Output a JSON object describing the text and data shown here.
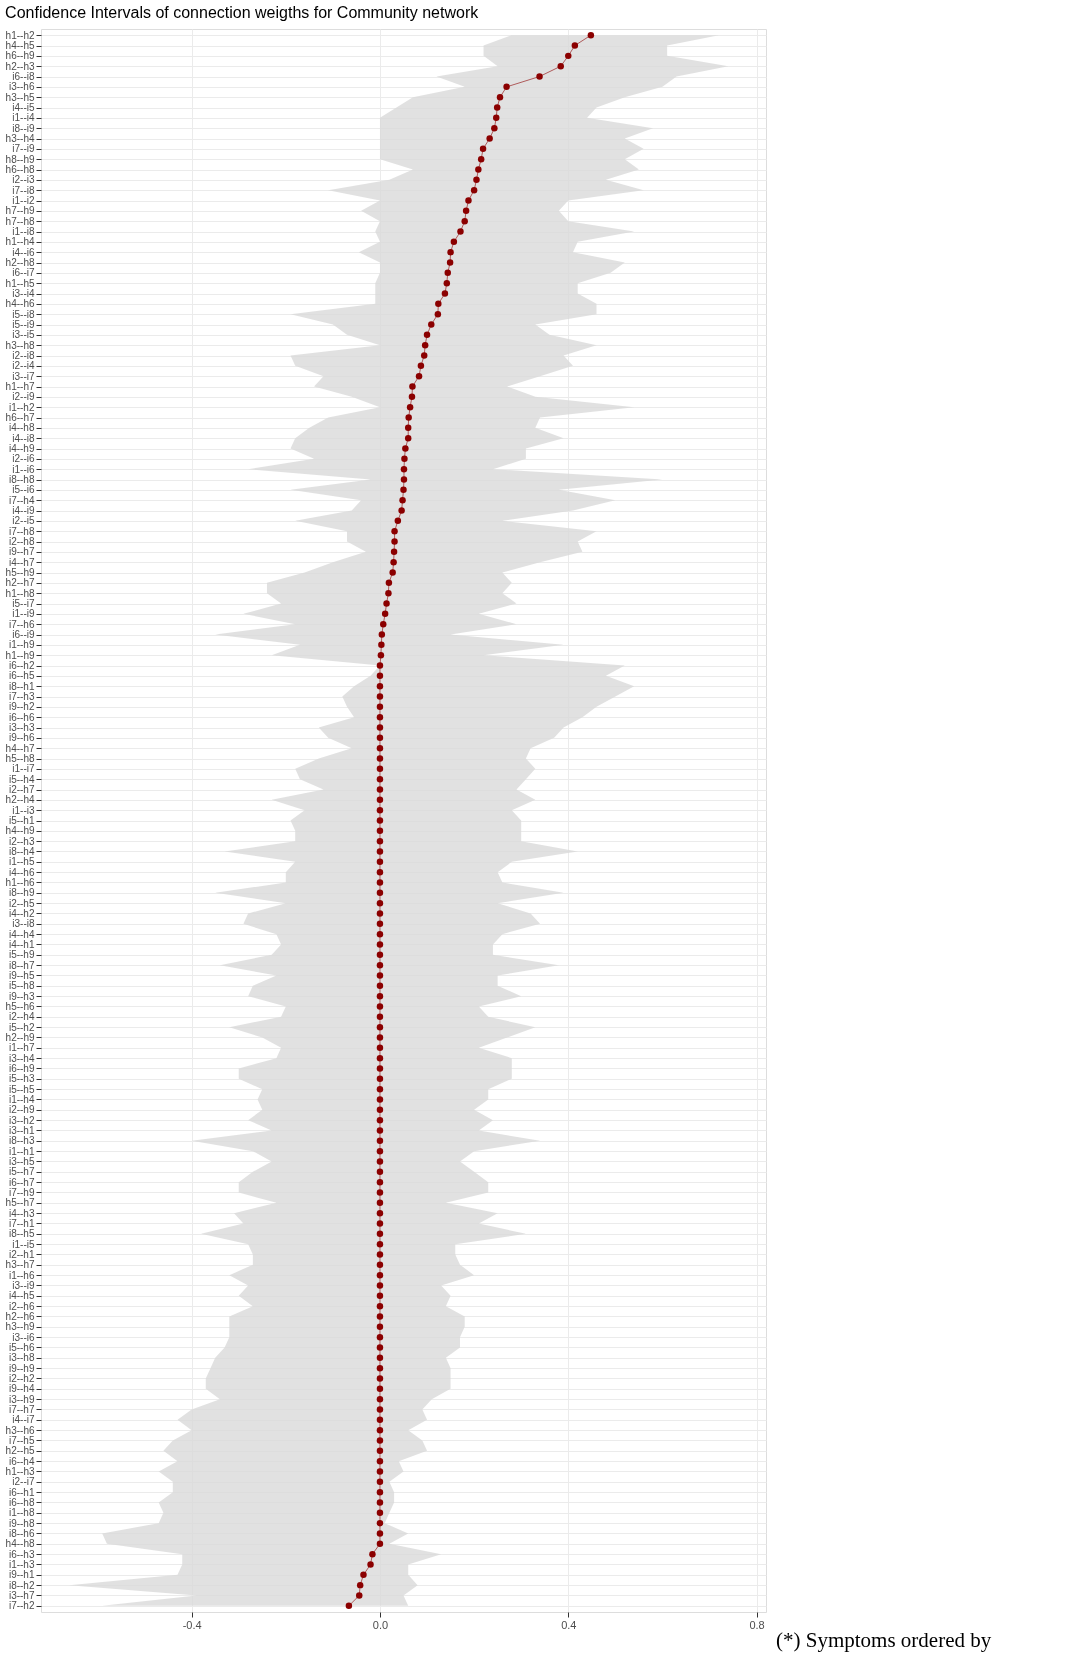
{
  "chart_data": {
    "type": "line",
    "orientation": "horizontal",
    "title": "Confidence Intervals of connection weigths for Community network",
    "annotations": [
      "(*) Symptoms ordered by"
    ],
    "categories": [
      "h1--h2",
      "h4--h5",
      "h6--h9",
      "h2--h3",
      "i6--i8",
      "i3--h6",
      "h3--h5",
      "i4--i5",
      "i1--i4",
      "i8--i9",
      "h3--h4",
      "i7--i9",
      "h8--h9",
      "h6--h8",
      "i2--i3",
      "i7--i8",
      "i1--i2",
      "h7--h9",
      "h7--h8",
      "i1--i8",
      "h1--h4",
      "i4--i6",
      "h2--h8",
      "i6--i7",
      "h1--h5",
      "i3--i4",
      "h4--h6",
      "i5--i8",
      "i5--i9",
      "i3--i5",
      "h3--h8",
      "i2--i8",
      "i2--i4",
      "i3--i7",
      "h1--h7",
      "i2--i9",
      "i1--h2",
      "h6--h7",
      "i4--h8",
      "i4--i8",
      "i4--h9",
      "i2--i6",
      "i1--i6",
      "i8--h8",
      "i5--i6",
      "i7--h4",
      "i4--i9",
      "i2--i5",
      "i7--h8",
      "i2--h8",
      "i9--h7",
      "i4--h7",
      "h5--h9",
      "h2--h7",
      "h1--h8",
      "i5--i7",
      "i1--i9",
      "i7--h6",
      "i6--i9",
      "i1--h9",
      "h1--h9",
      "i6--h2",
      "i6--h5",
      "i8--h1",
      "i7--h3",
      "i9--h2",
      "i6--h6",
      "i3--h3",
      "i9--h6",
      "h4--h7",
      "h5--h8",
      "i1--i7",
      "i5--h4",
      "i2--h7",
      "h2--h4",
      "i1--i3",
      "i5--h1",
      "h4--h9",
      "i2--h3",
      "i8--h4",
      "i1--h5",
      "i4--h6",
      "h1--h6",
      "i8--h9",
      "i2--h5",
      "i4--h2",
      "i3--i8",
      "i4--h4",
      "i4--h1",
      "i5--h9",
      "i8--h7",
      "i9--h5",
      "i5--h8",
      "i9--h3",
      "h5--h6",
      "i2--h4",
      "i5--h2",
      "h2--h9",
      "i1--h7",
      "i3--h4",
      "i6--h9",
      "i5--h3",
      "i5--h5",
      "i1--h4",
      "i2--h9",
      "i3--h2",
      "i3--h1",
      "i8--h3",
      "i1--h1",
      "i3--h5",
      "i5--h7",
      "i6--h7",
      "i7--h9",
      "h5--h7",
      "i4--h3",
      "i7--h1",
      "i8--h5",
      "i1--i5",
      "i2--h1",
      "h3--h7",
      "i1--h6",
      "i3--i9",
      "i4--h5",
      "i2--h6",
      "h2--h6",
      "h3--h9",
      "i3--i6",
      "i5--h6",
      "i3--h8",
      "i9--h9",
      "i2--h2",
      "i9--h4",
      "i3--h9",
      "i7--h7",
      "i4--i7",
      "h3--h6",
      "i7--h5",
      "h2--h5",
      "i6--h4",
      "h1--h3",
      "i2--i7",
      "i6--h1",
      "i6--h8",
      "i1--h8",
      "i9--h8",
      "i8--h6",
      "h4--h8",
      "i6--h3",
      "i1--h3",
      "i9--h1",
      "i8--h2",
      "i3--h7",
      "i7--h2"
    ],
    "series": [
      {
        "color": "#8b0000",
        "values": [
          0.448,
          0.414,
          0.4,
          0.384,
          0.339,
          0.269,
          0.255,
          0.249,
          0.247,
          0.243,
          0.233,
          0.219,
          0.215,
          0.209,
          0.205,
          0.2,
          0.188,
          0.183,
          0.18,
          0.171,
          0.157,
          0.15,
          0.149,
          0.144,
          0.142,
          0.138,
          0.124,
          0.123,
          0.109,
          0.1,
          0.096,
          0.094,
          0.087,
          0.083,
          0.069,
          0.068,
          0.064,
          0.061,
          0.06,
          0.06,
          0.054,
          0.052,
          0.051,
          0.051,
          0.05,
          0.048,
          0.046,
          0.038,
          0.031,
          0.031,
          0.03,
          0.029,
          0.027,
          0.019,
          0.018,
          0.014,
          0.011,
          0.007,
          0.004,
          0.003,
          0.002,
          0,
          0,
          0,
          0,
          0,
          0,
          0,
          0,
          0,
          0,
          0,
          0,
          0,
          0,
          0,
          0,
          0,
          0,
          0,
          0,
          0,
          0,
          0,
          0,
          0,
          0,
          0,
          0,
          0,
          0,
          0,
          0,
          0,
          0,
          0,
          0,
          0,
          0,
          0,
          0,
          0,
          0,
          0,
          0,
          0,
          0,
          0,
          0,
          0,
          0,
          0,
          0,
          0,
          0,
          0,
          0,
          0,
          0,
          0,
          0,
          0,
          0,
          0,
          0,
          0,
          0,
          0,
          0,
          0,
          0,
          0,
          0,
          0,
          0,
          0,
          0,
          0,
          0,
          0,
          0,
          0,
          0,
          0,
          0,
          0,
          0,
          -0.016,
          -0.02,
          -0.035,
          -0.042,
          -0.044,
          -0.066
        ],
        "lower": [
          0.28,
          0.22,
          0.22,
          0.25,
          0.12,
          0.18,
          0.07,
          0.035,
          0.0,
          0.0,
          0.0,
          0.0,
          0.0,
          0.07,
          0.02,
          -0.11,
          0.0,
          -0.04,
          0.0,
          -0.01,
          0.0,
          -0.045,
          0.0,
          0.0,
          -0.01,
          -0.01,
          -0.01,
          -0.19,
          -0.1,
          -0.07,
          0.0,
          -0.19,
          -0.18,
          -0.12,
          -0.14,
          -0.06,
          0.0,
          -0.11,
          -0.15,
          -0.18,
          -0.19,
          -0.14,
          -0.28,
          -0.02,
          -0.19,
          -0.04,
          -0.06,
          -0.18,
          -0.07,
          -0.07,
          -0.03,
          -0.1,
          -0.16,
          -0.24,
          -0.24,
          -0.21,
          -0.29,
          -0.18,
          -0.35,
          -0.17,
          -0.23,
          0.0,
          -0.02,
          -0.055,
          -0.08,
          -0.07,
          -0.055,
          -0.13,
          -0.11,
          -0.06,
          -0.13,
          -0.18,
          -0.17,
          -0.12,
          -0.23,
          -0.16,
          -0.19,
          -0.18,
          -0.18,
          -0.33,
          -0.18,
          -0.2,
          -0.2,
          -0.35,
          -0.2,
          -0.28,
          -0.29,
          -0.22,
          -0.21,
          -0.23,
          -0.34,
          -0.22,
          -0.27,
          -0.28,
          -0.2,
          -0.21,
          -0.32,
          -0.25,
          -0.21,
          -0.22,
          -0.3,
          -0.3,
          -0.25,
          -0.26,
          -0.25,
          -0.28,
          -0.23,
          -0.4,
          -0.27,
          -0.23,
          -0.27,
          -0.3,
          -0.3,
          -0.22,
          -0.31,
          -0.29,
          -0.38,
          -0.28,
          -0.27,
          -0.27,
          -0.32,
          -0.28,
          -0.3,
          -0.27,
          -0.32,
          -0.32,
          -0.32,
          -0.33,
          -0.35,
          -0.36,
          -0.37,
          -0.37,
          -0.34,
          -0.4,
          -0.43,
          -0.4,
          -0.44,
          -0.46,
          -0.43,
          -0.47,
          -0.44,
          -0.44,
          -0.47,
          -0.46,
          -0.47,
          -0.59,
          -0.58,
          -0.42,
          -0.42,
          -0.43,
          -0.66,
          -0.39,
          -0.59
        ],
        "upper": [
          0.72,
          0.61,
          0.61,
          0.74,
          0.63,
          0.6,
          0.52,
          0.46,
          0.44,
          0.58,
          0.52,
          0.56,
          0.52,
          0.55,
          0.48,
          0.56,
          0.4,
          0.38,
          0.4,
          0.54,
          0.42,
          0.41,
          0.52,
          0.49,
          0.42,
          0.42,
          0.46,
          0.46,
          0.33,
          0.36,
          0.46,
          0.39,
          0.41,
          0.34,
          0.27,
          0.33,
          0.54,
          0.34,
          0.33,
          0.39,
          0.31,
          0.31,
          0.24,
          0.6,
          0.38,
          0.5,
          0.41,
          0.26,
          0.46,
          0.42,
          0.43,
          0.34,
          0.26,
          0.28,
          0.26,
          0.29,
          0.21,
          0.29,
          0.15,
          0.39,
          0.22,
          0.52,
          0.48,
          0.54,
          0.5,
          0.46,
          0.43,
          0.39,
          0.37,
          0.32,
          0.31,
          0.33,
          0.31,
          0.29,
          0.33,
          0.28,
          0.3,
          0.3,
          0.3,
          0.42,
          0.28,
          0.25,
          0.26,
          0.39,
          0.25,
          0.32,
          0.34,
          0.26,
          0.24,
          0.24,
          0.38,
          0.25,
          0.25,
          0.3,
          0.21,
          0.23,
          0.33,
          0.27,
          0.21,
          0.28,
          0.28,
          0.28,
          0.23,
          0.23,
          0.2,
          0.24,
          0.21,
          0.34,
          0.2,
          0.17,
          0.2,
          0.23,
          0.23,
          0.14,
          0.25,
          0.21,
          0.31,
          0.16,
          0.16,
          0.17,
          0.2,
          0.13,
          0.15,
          0.14,
          0.18,
          0.18,
          0.17,
          0.17,
          0.14,
          0.15,
          0.15,
          0.15,
          0.11,
          0.09,
          0.1,
          0.06,
          0.09,
          0.1,
          0.04,
          0.05,
          0.02,
          0.03,
          0.03,
          0.02,
          0.01,
          0.06,
          0.02,
          0.13,
          0.06,
          0.06,
          0.08,
          0.05,
          0.06
        ]
      }
    ],
    "xlim": [
      -0.72,
      0.82
    ],
    "xticks": [
      {
        "value": -0.4,
        "label": "-0.4"
      },
      {
        "value": 0,
        "label": "0.0"
      },
      {
        "value": 0.4,
        "label": "0.4"
      },
      {
        "value": 0.8,
        "label": "0.8"
      }
    ],
    "grid": true,
    "marker": "circle",
    "line_style": "solid"
  }
}
